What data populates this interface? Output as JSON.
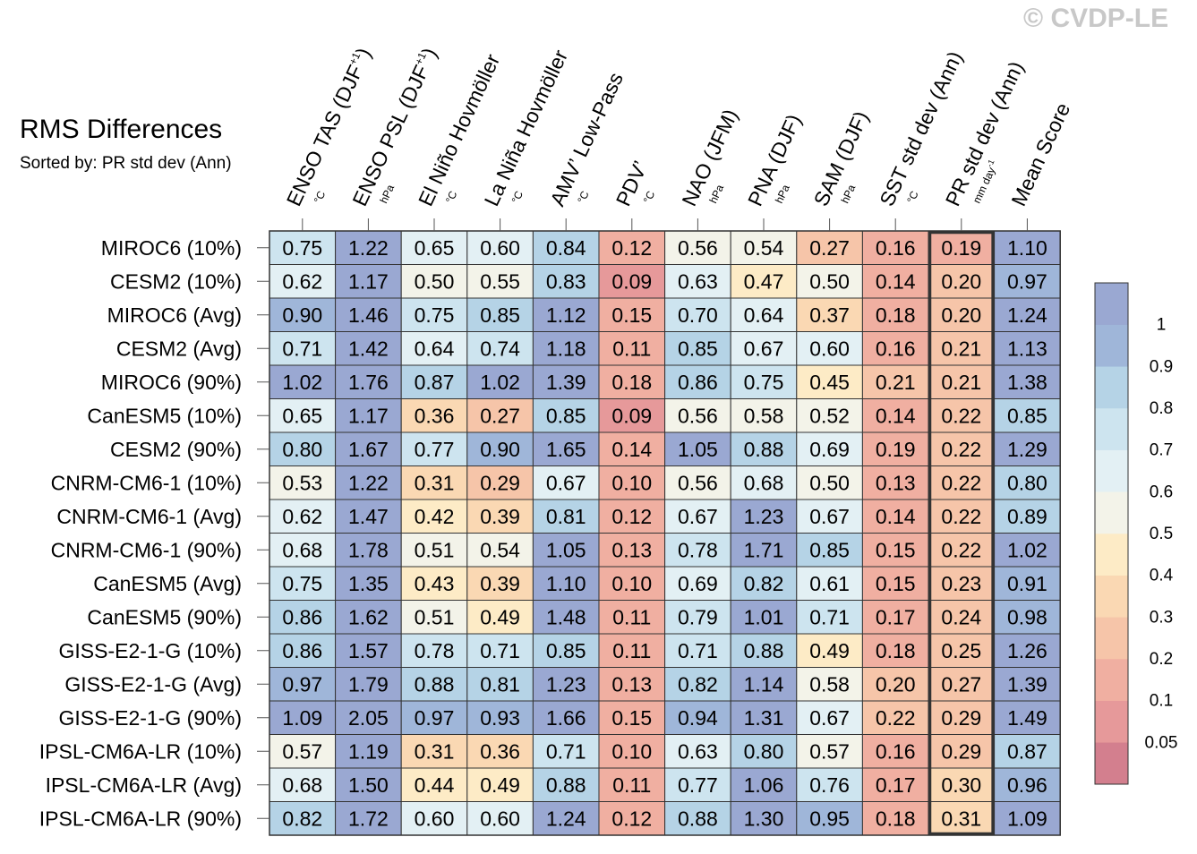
{
  "header": {
    "title": "RMS Differences",
    "subtitle": "Sorted by: PR std dev (Ann)",
    "credit": "© CVDP-LE"
  },
  "colors": {
    "grid": "#333333",
    "highlight_border": "#333333",
    "palette": [
      "#d37f8e",
      "#e6999a",
      "#f0afa1",
      "#f6c5a9",
      "#fad8b3",
      "#fdebc6",
      "#f3f3e9",
      "#e3f0f4",
      "#cde4ef",
      "#b5d3e6",
      "#9fb6d9",
      "#9aa8d2"
    ]
  },
  "chart_data": {
    "type": "heatmap",
    "title": "RMS Differences",
    "subtitle": "Sorted by: PR std dev (Ann)",
    "sorted_by": "PR std dev (Ann)",
    "highlighted_column": "PR std dev (Ann)",
    "columns": [
      {
        "name": "ENSO TAS (DJF",
        "sup": "+1",
        "close": ")",
        "unit": "°C"
      },
      {
        "name": "ENSO PSL (DJF",
        "sup": "+1",
        "close": ")",
        "unit": "hPa"
      },
      {
        "name": "El Niño Hovmöller",
        "unit": "°C"
      },
      {
        "name": "La Niña Hovmöller",
        "unit": "°C"
      },
      {
        "name": "AMV’ Low-Pass",
        "unit": "°C"
      },
      {
        "name": "PDV’",
        "unit": "°C"
      },
      {
        "name": "NAO (JFM)",
        "unit": "hPa"
      },
      {
        "name": "PNA (DJF)",
        "unit": "hPa"
      },
      {
        "name": "SAM (DJF)",
        "unit": "hPa"
      },
      {
        "name": "SST std dev (Ann)",
        "unit": "°C"
      },
      {
        "name": "PR std dev (Ann)",
        "unit": "mm day",
        "unit_sup": "-1"
      },
      {
        "name": "Mean Score",
        "unit": ""
      }
    ],
    "rows": [
      {
        "label": "MIROC6 (10%)",
        "values": [
          0.75,
          1.22,
          0.65,
          0.6,
          0.84,
          0.12,
          0.56,
          0.54,
          0.27,
          0.16,
          0.19,
          1.1
        ]
      },
      {
        "label": "CESM2 (10%)",
        "values": [
          0.62,
          1.17,
          0.5,
          0.55,
          0.83,
          0.09,
          0.63,
          0.47,
          0.5,
          0.14,
          0.2,
          0.97
        ]
      },
      {
        "label": "MIROC6 (Avg)",
        "values": [
          0.9,
          1.46,
          0.75,
          0.85,
          1.12,
          0.15,
          0.7,
          0.64,
          0.37,
          0.18,
          0.2,
          1.24
        ]
      },
      {
        "label": "CESM2 (Avg)",
        "values": [
          0.71,
          1.42,
          0.64,
          0.74,
          1.18,
          0.11,
          0.85,
          0.67,
          0.6,
          0.16,
          0.21,
          1.13
        ]
      },
      {
        "label": "MIROC6 (90%)",
        "values": [
          1.02,
          1.76,
          0.87,
          1.02,
          1.39,
          0.18,
          0.86,
          0.75,
          0.45,
          0.21,
          0.21,
          1.38
        ]
      },
      {
        "label": "CanESM5 (10%)",
        "values": [
          0.65,
          1.17,
          0.36,
          0.27,
          0.85,
          0.09,
          0.56,
          0.58,
          0.52,
          0.14,
          0.22,
          0.85
        ]
      },
      {
        "label": "CESM2 (90%)",
        "values": [
          0.8,
          1.67,
          0.77,
          0.9,
          1.65,
          0.14,
          1.05,
          0.88,
          0.69,
          0.19,
          0.22,
          1.29
        ]
      },
      {
        "label": "CNRM-CM6-1 (10%)",
        "values": [
          0.53,
          1.22,
          0.31,
          0.29,
          0.67,
          0.1,
          0.56,
          0.68,
          0.5,
          0.13,
          0.22,
          0.8
        ]
      },
      {
        "label": "CNRM-CM6-1 (Avg)",
        "values": [
          0.62,
          1.47,
          0.42,
          0.39,
          0.81,
          0.12,
          0.67,
          1.23,
          0.67,
          0.14,
          0.22,
          0.89
        ]
      },
      {
        "label": "CNRM-CM6-1 (90%)",
        "values": [
          0.68,
          1.78,
          0.51,
          0.54,
          1.05,
          0.13,
          0.78,
          1.71,
          0.85,
          0.15,
          0.22,
          1.02
        ]
      },
      {
        "label": "CanESM5 (Avg)",
        "values": [
          0.75,
          1.35,
          0.43,
          0.39,
          1.1,
          0.1,
          0.69,
          0.82,
          0.61,
          0.15,
          0.23,
          0.91
        ]
      },
      {
        "label": "CanESM5 (90%)",
        "values": [
          0.86,
          1.62,
          0.51,
          0.49,
          1.48,
          0.11,
          0.79,
          1.01,
          0.71,
          0.17,
          0.24,
          0.98
        ]
      },
      {
        "label": "GISS-E2-1-G (10%)",
        "values": [
          0.86,
          1.57,
          0.78,
          0.71,
          0.85,
          0.11,
          0.71,
          0.88,
          0.49,
          0.18,
          0.25,
          1.26
        ]
      },
      {
        "label": "GISS-E2-1-G (Avg)",
        "values": [
          0.97,
          1.79,
          0.88,
          0.81,
          1.23,
          0.13,
          0.82,
          1.14,
          0.58,
          0.2,
          0.27,
          1.39
        ]
      },
      {
        "label": "GISS-E2-1-G (90%)",
        "values": [
          1.09,
          2.05,
          0.97,
          0.93,
          1.66,
          0.15,
          0.94,
          1.31,
          0.67,
          0.22,
          0.29,
          1.49
        ]
      },
      {
        "label": "IPSL-CM6A-LR (10%)",
        "values": [
          0.57,
          1.19,
          0.31,
          0.36,
          0.71,
          0.1,
          0.63,
          0.8,
          0.57,
          0.16,
          0.29,
          0.87
        ]
      },
      {
        "label": "IPSL-CM6A-LR (Avg)",
        "values": [
          0.68,
          1.5,
          0.44,
          0.49,
          0.88,
          0.11,
          0.77,
          1.06,
          0.76,
          0.17,
          0.3,
          0.96
        ]
      },
      {
        "label": "IPSL-CM6A-LR (90%)",
        "values": [
          0.82,
          1.72,
          0.6,
          0.6,
          1.24,
          0.12,
          0.88,
          1.3,
          0.95,
          0.18,
          0.31,
          1.09
        ]
      }
    ],
    "colorbar": {
      "thresholds": [
        0.05,
        0.1,
        0.2,
        0.3,
        0.4,
        0.5,
        0.6,
        0.7,
        0.8,
        0.9,
        1
      ],
      "labels": [
        "0.05",
        "0.1",
        "0.2",
        "0.3",
        "0.4",
        "0.5",
        "0.6",
        "0.7",
        "0.8",
        "0.9",
        "1"
      ]
    }
  }
}
